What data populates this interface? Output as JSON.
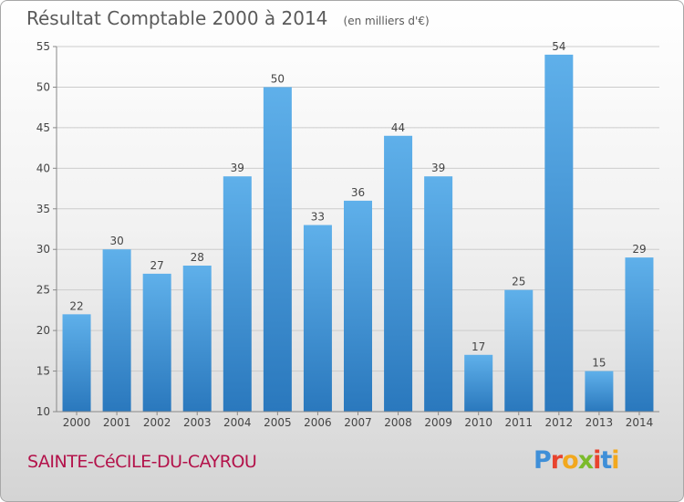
{
  "chart_data": {
    "type": "bar",
    "title": "Résultat Comptable 2000 à 2014",
    "subtitle": "(en milliers d'€)",
    "categories": [
      "2000",
      "2001",
      "2002",
      "2003",
      "2004",
      "2005",
      "2006",
      "2007",
      "2008",
      "2009",
      "2010",
      "2011",
      "2012",
      "2013",
      "2014"
    ],
    "values": [
      22,
      30,
      27,
      28,
      39,
      50,
      33,
      36,
      44,
      39,
      17,
      25,
      54,
      15,
      29
    ],
    "ylim": [
      10,
      55
    ],
    "yticks": [
      10,
      15,
      20,
      25,
      30,
      35,
      40,
      45,
      50,
      55
    ],
    "xlabel": "",
    "ylabel": "",
    "grid": true,
    "colors": {
      "bar_light": "#5fb0ea",
      "bar_dark": "#2a78bd",
      "grid": "#cccccc",
      "axis": "#888888"
    }
  },
  "footer": {
    "commune": "SAINTE-CéCILE-DU-CAYROU",
    "logo_letters": [
      "P",
      "r",
      "o",
      "x",
      "i",
      "t",
      "i"
    ],
    "logo_colors": [
      "#3f8fd8",
      "#e8432e",
      "#f2a81d",
      "#7bbb2b",
      "#e8432e",
      "#3f8fd8",
      "#f2a81d"
    ]
  }
}
